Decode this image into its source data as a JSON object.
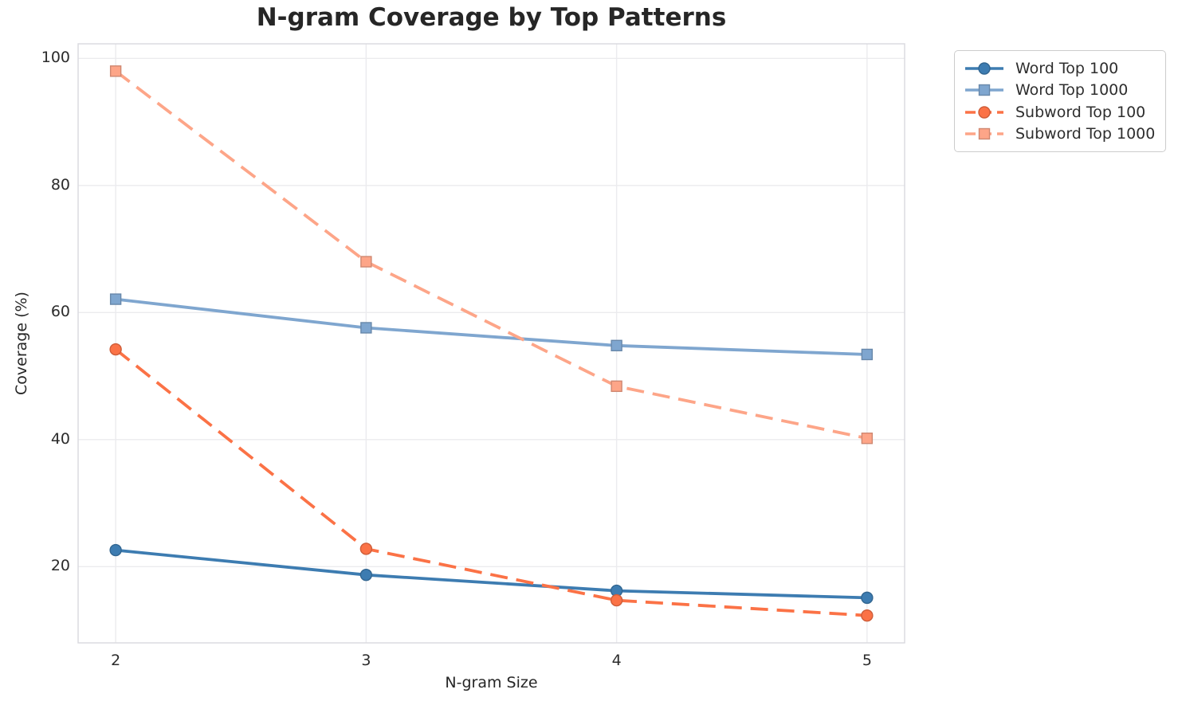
{
  "chart_data": {
    "type": "line",
    "title": "N-gram Coverage by Top Patterns",
    "xlabel": "N-gram Size",
    "ylabel": "Coverage (%)",
    "x": [
      2,
      3,
      4,
      5
    ],
    "xticks": [
      2,
      3,
      4,
      5
    ],
    "yticks": [
      20,
      40,
      60,
      80,
      100
    ],
    "xlim": [
      1.85,
      5.15
    ],
    "ylim": [
      8,
      102.3
    ],
    "grid": true,
    "legend_position": "upper right, outside plot",
    "series": [
      {
        "name": "Word Top 100",
        "color": "#3d7cb1",
        "marker": "circle",
        "line_style": "solid",
        "values": [
          22.6,
          18.7,
          16.2,
          15.1
        ]
      },
      {
        "name": "Word Top 1000",
        "color": "#7fa6cf",
        "marker": "square",
        "line_style": "solid",
        "values": [
          62.1,
          57.6,
          54.8,
          53.4
        ]
      },
      {
        "name": "Subword Top 100",
        "color": "#fb7246",
        "marker": "circle",
        "line_style": "dashed",
        "values": [
          54.2,
          22.8,
          14.7,
          12.3
        ]
      },
      {
        "name": "Subword Top 1000",
        "color": "#fda588",
        "marker": "square",
        "line_style": "dashed",
        "values": [
          98.0,
          68.0,
          48.4,
          40.2
        ]
      }
    ]
  },
  "style_colors": {
    "grid": "#ebebee",
    "spine": "#d9d9de",
    "text": "#262626",
    "background": "#ffffff"
  }
}
